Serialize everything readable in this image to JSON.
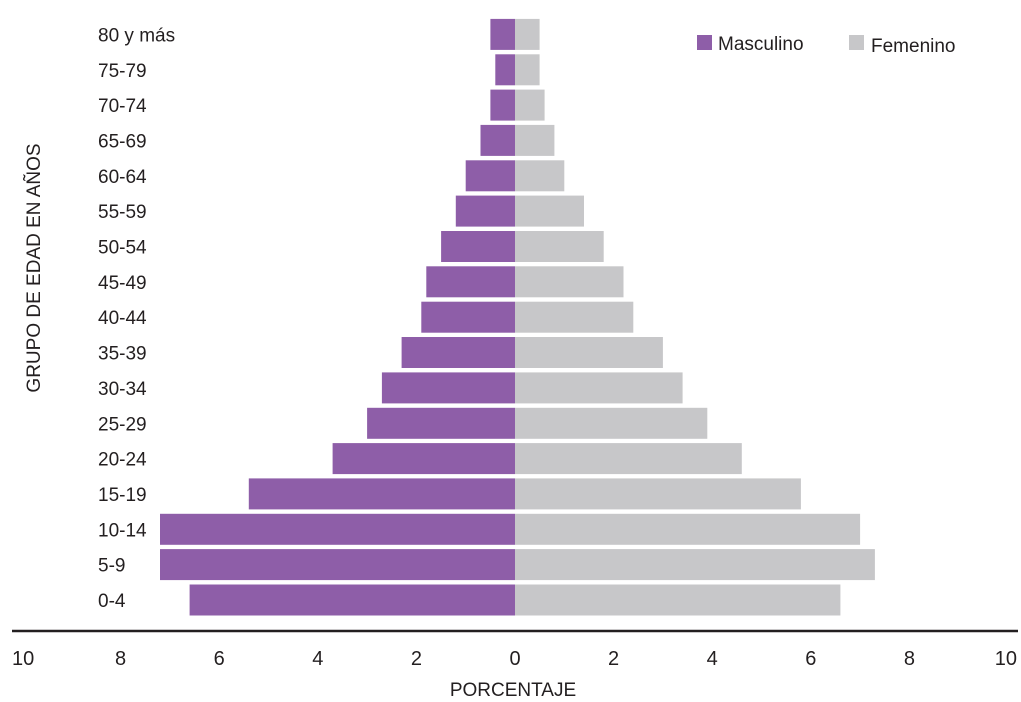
{
  "chart_data": {
    "type": "bar",
    "orientation": "horizontal-population-pyramid",
    "title": "",
    "xlabel": "PORCENTAJE",
    "ylabel": "GRUPO DE EDAD EN AÑOS",
    "xlim": [
      -10,
      10
    ],
    "x_ticks": [
      -10,
      -8,
      -6,
      -4,
      -2,
      0,
      2,
      4,
      6,
      8,
      10
    ],
    "x_tick_labels": [
      "10",
      "8",
      "6",
      "4",
      "2",
      "0",
      "2",
      "4",
      "6",
      "8",
      "10"
    ],
    "categories": [
      "0-4",
      "5-9",
      "10-14",
      "15-19",
      "20-24",
      "25-29",
      "30-34",
      "35-39",
      "40-44",
      "45-49",
      "50-54",
      "55-59",
      "60-64",
      "65-69",
      "70-74",
      "75-79",
      "80 y más"
    ],
    "series": [
      {
        "name": "Masculino",
        "color": "#8e5ea8",
        "side": "left",
        "values": [
          6.6,
          7.2,
          7.2,
          5.4,
          3.7,
          3.0,
          2.7,
          2.3,
          1.9,
          1.8,
          1.5,
          1.2,
          1.0,
          0.7,
          0.5,
          0.4,
          0.5
        ]
      },
      {
        "name": "Femenino",
        "color": "#c7c7c9",
        "side": "right",
        "values": [
          6.6,
          7.3,
          7.0,
          5.8,
          4.6,
          3.9,
          3.4,
          3.0,
          2.4,
          2.2,
          1.8,
          1.4,
          1.0,
          0.8,
          0.6,
          0.5,
          0.5
        ]
      }
    ],
    "grid": false,
    "legend_position": "top-right"
  }
}
